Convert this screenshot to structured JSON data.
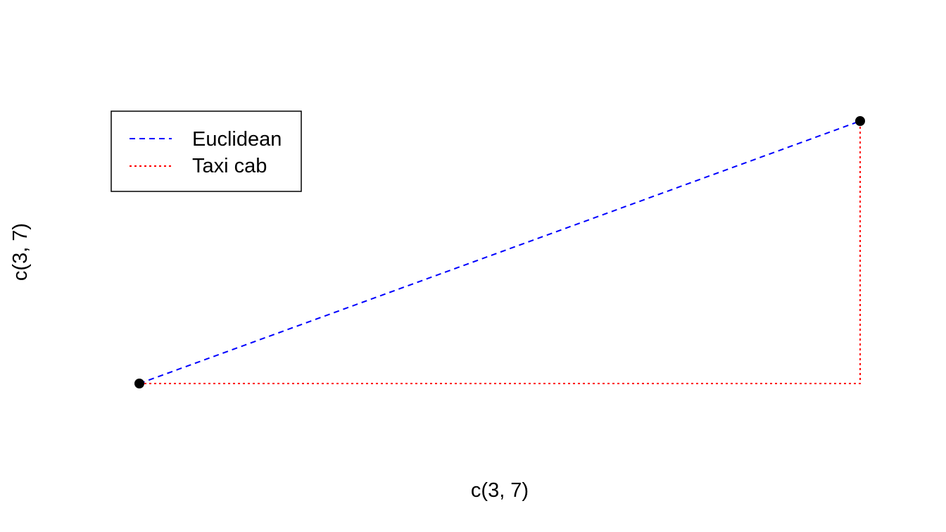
{
  "chart_data": {
    "type": "line",
    "title": "",
    "xlabel": "c(3, 7)",
    "ylabel": "c(3, 7)",
    "xlim": [
      3,
      7
    ],
    "ylim": [
      3,
      7
    ],
    "axes_shown": false,
    "grid": false,
    "legend_position": "top-left",
    "points": [
      {
        "x": 3,
        "y": 3
      },
      {
        "x": 7,
        "y": 7
      }
    ],
    "series": [
      {
        "name": "Euclidean",
        "color": "#0000FF",
        "line_style": "dashed",
        "x": [
          3,
          7
        ],
        "y": [
          3,
          7
        ]
      },
      {
        "name": "Taxi cab",
        "color": "#FF0000",
        "line_style": "dotted",
        "x": [
          3,
          7,
          7
        ],
        "y": [
          3,
          3,
          7
        ]
      }
    ]
  }
}
